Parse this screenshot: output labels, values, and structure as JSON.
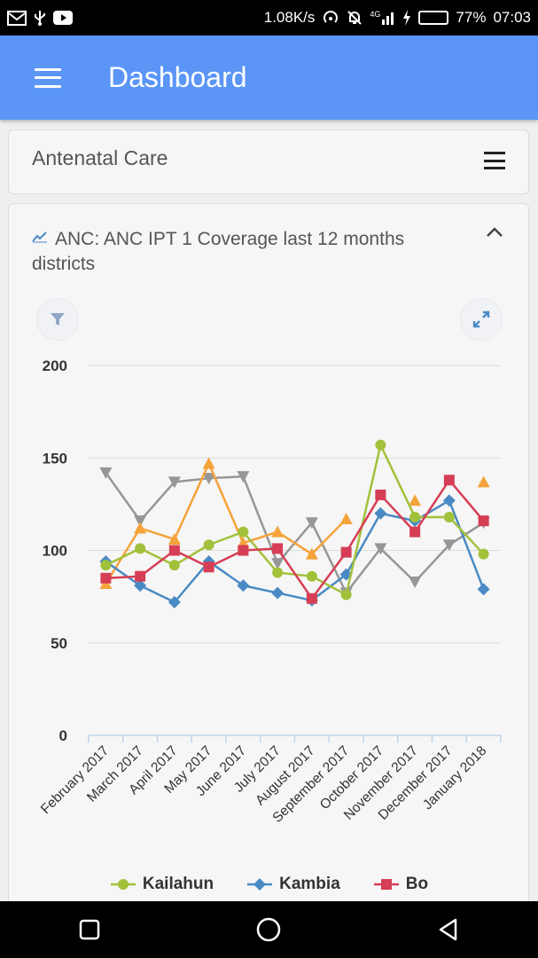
{
  "status_bar": {
    "icons_left": [
      "gmail-icon",
      "usb-icon",
      "youtube-icon"
    ],
    "speed": "1.08K/s",
    "network": "4G",
    "battery": "77%",
    "battery_level": 0.77,
    "time": "07:03"
  },
  "app_bar": {
    "title": "Dashboard"
  },
  "section_card": {
    "title": "Antenatal Care"
  },
  "chart_card": {
    "title": "ANC: ANC IPT 1 Coverage last 12 months districts"
  },
  "chart_data": {
    "type": "line",
    "categories": [
      "February 2017",
      "March 2017",
      "April 2017",
      "May 2017",
      "June 2017",
      "July 2017",
      "August 2017",
      "September 2017",
      "October 2017",
      "November 2017",
      "December 2017",
      "January 2018"
    ],
    "ylim": [
      0,
      200
    ],
    "yticks": [
      "200",
      "150",
      "100",
      "50",
      "0"
    ],
    "ytick_values": [
      200,
      150,
      100,
      50,
      0
    ],
    "grid": true,
    "legend_position": "bottom",
    "series": [
      {
        "name": "Kailahun",
        "color": "#a2c13a",
        "marker": "circle",
        "values": [
          92,
          101,
          92,
          103,
          110,
          88,
          86,
          76,
          157,
          118,
          118,
          98
        ]
      },
      {
        "name": "Kambia",
        "color": "#4a8ac4",
        "marker": "diamond",
        "values": [
          94,
          81,
          72,
          94,
          81,
          77,
          73,
          87,
          120,
          116,
          127,
          79
        ]
      },
      {
        "name": "Bo",
        "color": "#d63e55",
        "marker": "square",
        "values": [
          85,
          86,
          100,
          91,
          100,
          101,
          74,
          99,
          130,
          110,
          138,
          116
        ]
      },
      {
        "color": "#f5a33a",
        "marker": "triangle-up",
        "values": [
          82,
          112,
          106,
          147,
          104,
          110,
          98,
          117,
          null,
          127,
          null,
          137
        ]
      },
      {
        "color": "#969696",
        "marker": "triangle-down",
        "values": [
          142,
          116,
          137,
          139,
          140,
          93,
          115,
          77,
          101,
          83,
          103,
          115
        ]
      }
    ]
  }
}
